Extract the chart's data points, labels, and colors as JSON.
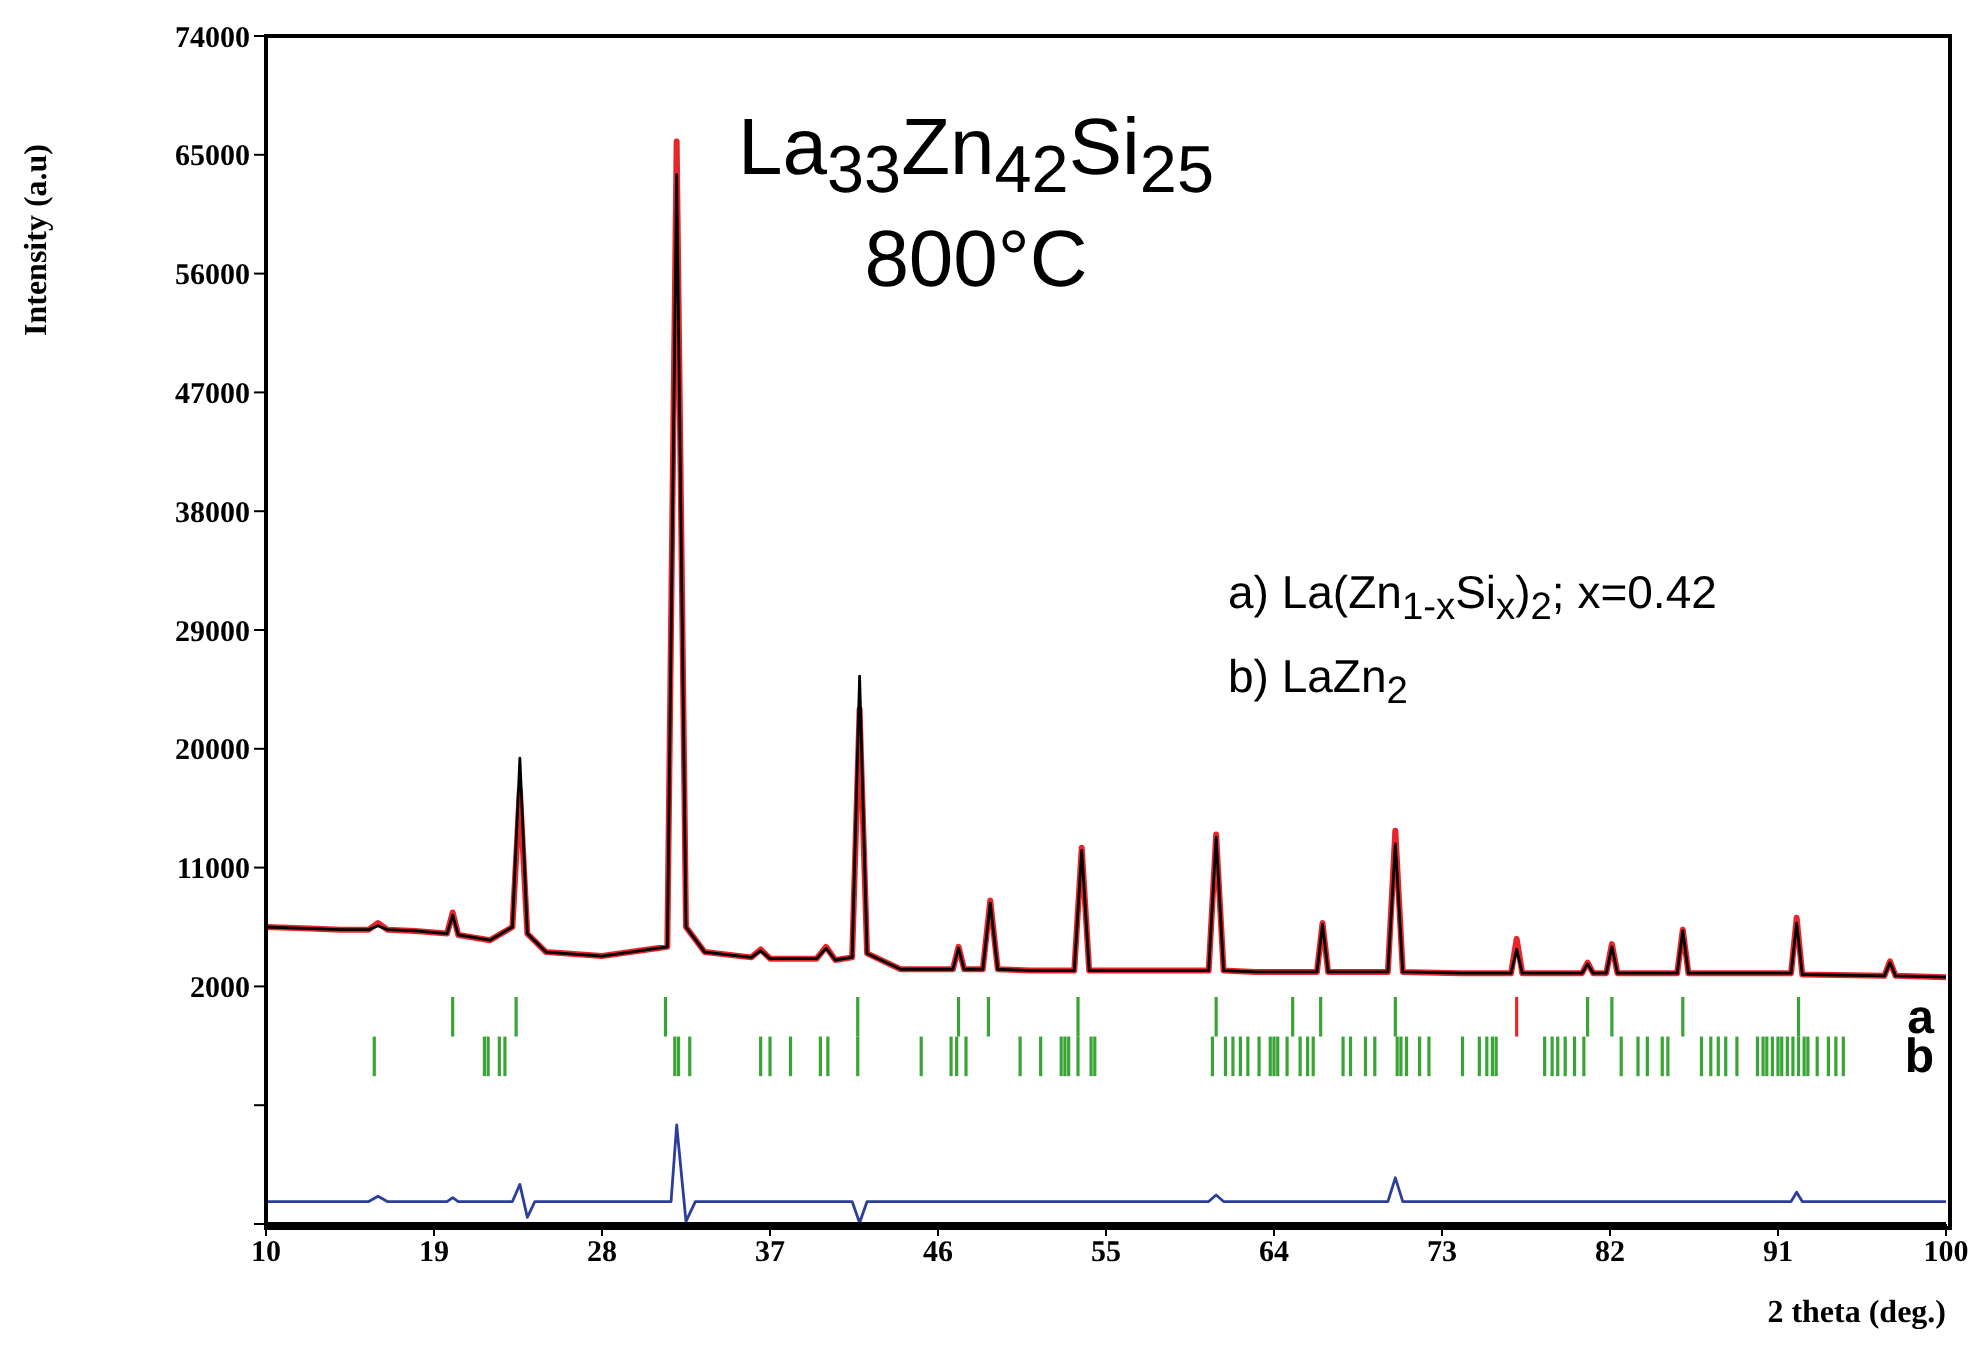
{
  "chart_data": {
    "type": "line",
    "title": "La$_{33}$Zn$_{42}$Si$_{25}$",
    "subtitle": "800°C",
    "xlabel": "2 theta (deg.)",
    "ylabel": "Intensity (a.u)",
    "annotations": [
      "a) La(Zn$_{1-x}$Si$_{x}$)$_{2}$; x=0.42",
      "b) LaZn$_{2}$"
    ],
    "xlim": [
      10,
      100
    ],
    "xticks": [
      10,
      19,
      28,
      37,
      46,
      55,
      64,
      73,
      82,
      91,
      100
    ],
    "ylim": [
      -16000,
      74000
    ],
    "yticks": [
      {
        "value": -16000,
        "label": null
      },
      {
        "value": -7000,
        "label": null
      },
      2000,
      11000,
      20000,
      29000,
      38000,
      47000,
      56000,
      65000,
      74000
    ],
    "grid": false,
    "series": [
      {
        "color": "#e8262a",
        "x": [
          10,
          12,
          14,
          15.5,
          16,
          16.5,
          18,
          19.7,
          20.0,
          20.3,
          22,
          23.2,
          23.6,
          24.0,
          25,
          28,
          31.5,
          32.0,
          32.5,
          33.5,
          36,
          36.5,
          37,
          39.5,
          40,
          40.5,
          41.4,
          41.8,
          42.2,
          44,
          46.8,
          47.1,
          47.4,
          48.4,
          48.8,
          49.2,
          51,
          53.3,
          53.7,
          54.1,
          57,
          60.5,
          60.9,
          61.3,
          63,
          66.3,
          66.6,
          66.9,
          70.1,
          70.5,
          70.9,
          74,
          76.7,
          77.0,
          77.3,
          80.5,
          80.8,
          81.1,
          81.8,
          82.1,
          82.4,
          85.6,
          85.9,
          86.2,
          91.7,
          92.0,
          92.3,
          96.7,
          97.0,
          97.3,
          100
        ],
        "values": [
          6500,
          6400,
          6300,
          6300,
          6800,
          6300,
          6200,
          6000,
          7600,
          5900,
          5500,
          6500,
          16900,
          6000,
          4600,
          4300,
          5000,
          66000,
          6500,
          4600,
          4200,
          4800,
          4100,
          4100,
          5000,
          4000,
          4200,
          23000,
          4500,
          3300,
          3300,
          5000,
          3300,
          3300,
          8500,
          3300,
          3200,
          3200,
          12500,
          3200,
          3200,
          3200,
          13500,
          3200,
          3100,
          3100,
          6800,
          3100,
          3100,
          13800,
          3100,
          3000,
          3000,
          5600,
          3000,
          3000,
          3800,
          3000,
          3000,
          5200,
          3000,
          3000,
          6300,
          3000,
          3000,
          7200,
          2900,
          2800,
          3900,
          2800,
          2700
        ]
      },
      {
        "color": "#000000",
        "x": [
          10,
          12,
          14,
          15.5,
          16,
          16.5,
          18,
          19.7,
          20.0,
          20.3,
          22,
          23.2,
          23.6,
          24.0,
          25,
          28,
          31.5,
          32.0,
          32.5,
          33.5,
          36,
          36.5,
          37,
          39.5,
          40,
          40.5,
          41.4,
          41.8,
          42.2,
          44,
          46.8,
          47.1,
          47.4,
          48.4,
          48.8,
          49.2,
          51,
          53.3,
          53.7,
          54.1,
          57,
          60.5,
          60.9,
          61.3,
          63,
          66.3,
          66.6,
          66.9,
          70.1,
          70.5,
          70.9,
          74,
          76.7,
          77.0,
          77.3,
          80.5,
          80.8,
          81.1,
          81.8,
          82.1,
          82.4,
          85.6,
          85.9,
          86.2,
          91.7,
          92.0,
          92.3,
          96.7,
          97.0,
          97.3,
          100
        ],
        "values": [
          6500,
          6400,
          6300,
          6300,
          6600,
          6300,
          6200,
          6000,
          7400,
          5900,
          5500,
          6500,
          19300,
          6000,
          4600,
          4300,
          5000,
          63500,
          6500,
          4600,
          4200,
          4700,
          4100,
          4100,
          4900,
          4000,
          4200,
          25500,
          4500,
          3300,
          3300,
          4900,
          3300,
          3300,
          8300,
          3300,
          3200,
          3200,
          12300,
          3200,
          3200,
          3200,
          13300,
          3200,
          3100,
          3100,
          6700,
          3100,
          3100,
          12800,
          3100,
          3000,
          3000,
          4800,
          3000,
          3000,
          3700,
          3000,
          3000,
          5000,
          3000,
          3000,
          6200,
          3000,
          3000,
          6800,
          2900,
          2800,
          3800,
          2800,
          2700
        ]
      },
      {
        "color": "#2b3f9a",
        "x": [
          10,
          15.5,
          16,
          16.5,
          19.7,
          20.0,
          20.3,
          23.2,
          23.6,
          24.0,
          24.4,
          31.7,
          32.0,
          32.5,
          33.0,
          41.4,
          41.8,
          42.2,
          60.5,
          60.9,
          61.3,
          70.1,
          70.5,
          70.9,
          91.7,
          92.0,
          92.3,
          100
        ],
        "values": [
          -14300,
          -14300,
          -13900,
          -14300,
          -14300,
          -14000,
          -14300,
          -14300,
          -13000,
          -15500,
          -14300,
          -14300,
          -8500,
          -15800,
          -14300,
          -14300,
          -15900,
          -14300,
          -14300,
          -13800,
          -14300,
          -14300,
          -12500,
          -14300,
          -14300,
          -13600,
          -14300,
          -14300
        ]
      },
      {
        "type": "bar",
        "name": "a",
        "color": "#3aa537",
        "x": [
          20.0,
          23.4,
          31.4,
          41.7,
          47.1,
          48.7,
          53.5,
          60.9,
          65.0,
          66.5,
          70.5,
          80.8,
          82.1,
          85.9,
          92.1
        ],
        "base": [
          -1800,
          -1800,
          -1800,
          -1800,
          -1800,
          -1800,
          -1800,
          -1800,
          -1800,
          -1800,
          -1800,
          -1800,
          -1800,
          -1800,
          -1800
        ],
        "values": [
          3000,
          3000,
          3000,
          3000,
          3000,
          3000,
          3000,
          3000,
          3000,
          3000,
          3000,
          3000,
          3000,
          3000,
          3000
        ]
      },
      {
        "type": "bar",
        "color": "#e8262a",
        "x": [
          77.0
        ],
        "base": [
          -1800
        ],
        "values": [
          3000
        ]
      },
      {
        "type": "bar",
        "name": "b",
        "color": "#3aa537",
        "base": [
          -4800,
          -4800,
          -4800,
          -4800,
          -4800,
          -4800,
          -4800,
          -4800,
          -4800,
          -4800,
          -4800,
          -4800,
          -4800,
          -4800,
          -4800,
          -4800,
          -4800,
          -4800,
          -4800,
          -4800,
          -4800,
          -4800,
          -4800,
          -4800,
          -4800,
          -4800,
          -4800,
          -4800,
          -4800,
          -4800,
          -4800,
          -4800,
          -4800,
          -4800,
          -4800,
          -4800,
          -4800,
          -4800,
          -4800,
          -4800,
          -4800,
          -4800,
          -4800,
          -4800,
          -4800,
          -4800,
          -4800,
          -4800,
          -4800,
          -4800,
          -4800,
          -4800,
          -4800,
          -4800,
          -4800,
          -4800,
          -4800,
          -4800,
          -4800,
          -4800,
          -4800,
          -4800,
          -4800,
          -4800,
          -4800,
          -4800,
          -4800,
          -4800,
          -4800,
          -4800,
          -4800,
          -4800,
          -4800,
          -4800,
          -4800,
          -4800,
          -4800,
          -4800,
          -4800,
          -4800,
          -4800,
          -4800,
          -4800,
          -4800
        ],
        "x": [
          15.8,
          21.7,
          21.9,
          22.5,
          22.8,
          31.9,
          32.1,
          32.7,
          36.5,
          37.0,
          38.1,
          39.7,
          40.1,
          41.7,
          45.1,
          46.7,
          47.0,
          47.5,
          50.4,
          51.5,
          52.6,
          52.8,
          53.0,
          53.5,
          54.2,
          54.4,
          60.7,
          61.4,
          61.8,
          62.2,
          62.6,
          63.2,
          63.8,
          64.0,
          64.2,
          64.7,
          65.4,
          65.8,
          66.1,
          67.7,
          68.1,
          68.9,
          69.4,
          70.6,
          70.8,
          71.1,
          71.8,
          72.3,
          74.1,
          75.0,
          75.4,
          75.7,
          75.9,
          78.5,
          78.9,
          79.2,
          79.6,
          80.1,
          80.6,
          82.6,
          83.5,
          84.0,
          84.8,
          85.1,
          86.9,
          87.4,
          87.8,
          88.2,
          88.8,
          89.9,
          90.2,
          90.4,
          90.7,
          91.0,
          91.2,
          91.5,
          91.8,
          92.1,
          92.4,
          92.6,
          93.1,
          93.7,
          94.1,
          94.5
        ],
        "values": [
          3000,
          3000,
          3000,
          3000,
          3000,
          3000,
          3000,
          3000,
          3000,
          3000,
          3000,
          3000,
          3000,
          3000,
          3000,
          3000,
          3000,
          3000,
          3000,
          3000,
          3000,
          3000,
          3000,
          3000,
          3000,
          3000,
          3000,
          3000,
          3000,
          3000,
          3000,
          3000,
          3000,
          3000,
          3000,
          3000,
          3000,
          3000,
          3000,
          3000,
          3000,
          3000,
          3000,
          3000,
          3000,
          3000,
          3000,
          3000,
          3000,
          3000,
          3000,
          3000,
          3000,
          3000,
          3000,
          3000,
          3000,
          3000,
          3000,
          3000,
          3000,
          3000,
          3000,
          3000,
          3000,
          3000,
          3000,
          3000,
          3000,
          3000,
          3000,
          3000,
          3000,
          3000,
          3000,
          3000,
          3000,
          3000,
          3000,
          3000,
          3000,
          3000,
          3000,
          3000
        ]
      }
    ]
  }
}
